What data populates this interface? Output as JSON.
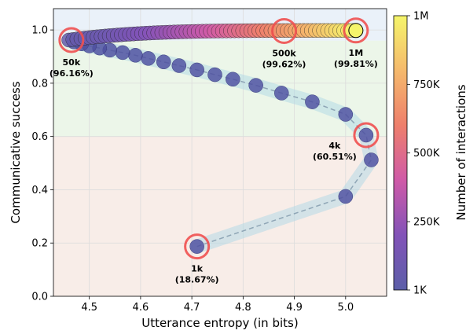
{
  "chart_data": {
    "type": "scatter",
    "xlabel": "Utterance entropy (in bits)",
    "ylabel": "Communicative success",
    "xlim": [
      4.43,
      5.08
    ],
    "ylim": [
      0.0,
      1.08
    ],
    "xticks": [
      "4.5",
      "4.6",
      "4.7",
      "4.8",
      "4.9",
      "5.0"
    ],
    "yticks": [
      "0.0",
      "0.2",
      "0.4",
      "0.6",
      "0.8",
      "1.0"
    ],
    "colorbar": {
      "label": "Number of interactions",
      "ticks": [
        "1K",
        "250K",
        "500K",
        "750K",
        "1M"
      ],
      "tick_values": [
        1000,
        250000,
        500000,
        750000,
        1000000
      ],
      "colors": [
        "#5b5ea8",
        "#8253b8",
        "#cf5aa8",
        "#ee7f6c",
        "#f5b96c",
        "#f5f56b"
      ]
    },
    "background_bands": [
      {
        "y0": 0.0,
        "y1": 0.6,
        "color": "#f8ede8"
      },
      {
        "y0": 0.6,
        "y1": 0.96,
        "color": "#ecf6e9"
      },
      {
        "y0": 0.96,
        "y1": 1.08,
        "color": "#eaf1f9"
      }
    ],
    "early_series": {
      "color": "#4d4ea0",
      "points": [
        {
          "x": 4.71,
          "y": 0.187,
          "n": 1000
        },
        {
          "x": 5.0,
          "y": 0.375,
          "n": 2000
        },
        {
          "x": 5.05,
          "y": 0.512,
          "n": 3000
        },
        {
          "x": 5.04,
          "y": 0.605,
          "n": 4000
        },
        {
          "x": 5.0,
          "y": 0.683,
          "n": 5000
        },
        {
          "x": 4.935,
          "y": 0.73,
          "n": 6000
        },
        {
          "x": 4.875,
          "y": 0.763,
          "n": 7000
        },
        {
          "x": 4.825,
          "y": 0.792,
          "n": 8000
        },
        {
          "x": 4.78,
          "y": 0.815,
          "n": 9000
        },
        {
          "x": 4.745,
          "y": 0.832,
          "n": 10000
        },
        {
          "x": 4.71,
          "y": 0.85,
          "n": 11000
        },
        {
          "x": 4.675,
          "y": 0.866,
          "n": 12000
        },
        {
          "x": 4.645,
          "y": 0.88,
          "n": 13000
        },
        {
          "x": 4.615,
          "y": 0.893,
          "n": 14000
        },
        {
          "x": 4.59,
          "y": 0.905,
          "n": 15000
        },
        {
          "x": 4.565,
          "y": 0.915,
          "n": 16000
        },
        {
          "x": 4.54,
          "y": 0.924,
          "n": 17000
        },
        {
          "x": 4.52,
          "y": 0.932,
          "n": 18000
        },
        {
          "x": 4.5,
          "y": 0.94,
          "n": 19000
        },
        {
          "x": 4.485,
          "y": 0.948,
          "n": 20000
        },
        {
          "x": 4.47,
          "y": 0.955,
          "n": 22000
        }
      ]
    },
    "late_series": {
      "x_start": 4.46,
      "y_start": 0.962,
      "x_end": 5.02,
      "y_end": 0.998,
      "n_start": 50000,
      "n_end": 1000000,
      "count": 72
    },
    "annotations": [
      {
        "x": 4.71,
        "y": 0.187,
        "label": "1k",
        "pct": "(18.67%)",
        "placement": "below"
      },
      {
        "x": 5.04,
        "y": 0.605,
        "label": "4k",
        "pct": "(60.51%)",
        "placement": "left-below"
      },
      {
        "x": 4.465,
        "y": 0.962,
        "label": "50k",
        "pct": "(96.16%)",
        "placement": "below"
      },
      {
        "x": 4.88,
        "y": 0.996,
        "label": "500k",
        "pct": "(99.62%)",
        "placement": "below"
      },
      {
        "x": 5.02,
        "y": 0.998,
        "label": "1M",
        "pct": "(99.81%)",
        "placement": "below"
      }
    ]
  }
}
